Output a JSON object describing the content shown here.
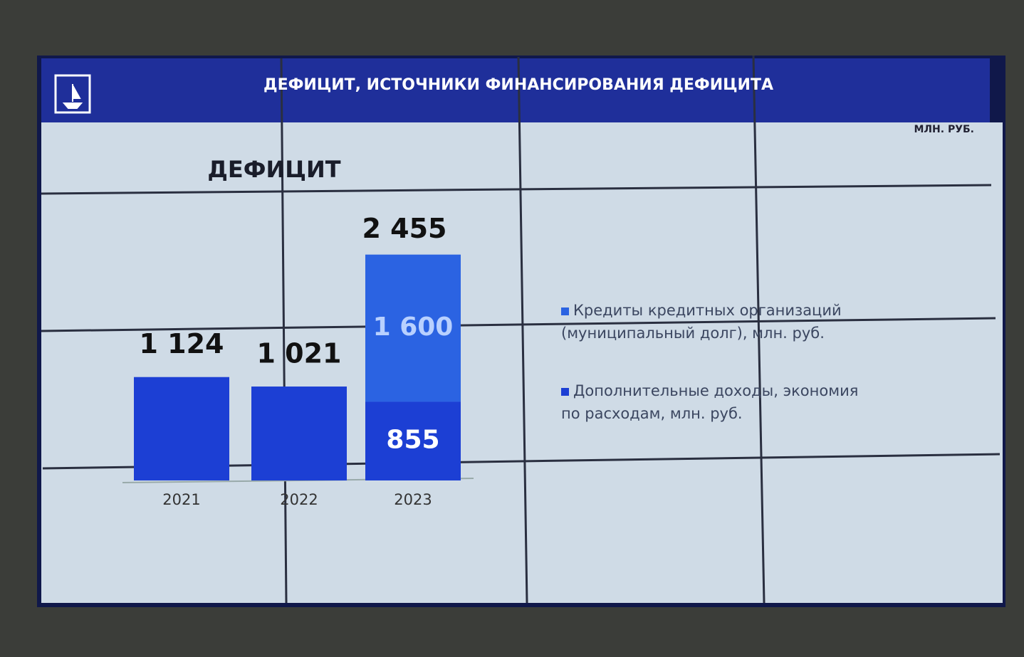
{
  "chart_data": {
    "type": "stacked_bar",
    "title": "ДЕФИЦИТ, ИСТОЧНИКИ ФИНАНСИРОВАНИЯ ДЕФИЦИТА",
    "subtitle": "ДЕФИЦИТ",
    "units": "МЛН. РУБ.",
    "categories": [
      "2021",
      "2022",
      "2023"
    ],
    "series": [
      {
        "name": "Дополнительные доходы, экономия по расходам, млн. руб.",
        "color": "#1c3fd4",
        "values": [
          1124,
          1021,
          855
        ],
        "value_labels": [
          "1 124",
          "1 021",
          "855"
        ]
      },
      {
        "name": "Кредиты кредитных организаций (муниципальный долг), млн. руб.",
        "color": "#2b63e2",
        "values": [
          null,
          null,
          1600
        ],
        "value_labels": [
          null,
          null,
          "1 600"
        ]
      }
    ],
    "totals": [
      null,
      null,
      2455
    ],
    "total_labels": [
      null,
      null,
      "2 455"
    ],
    "ylim": [
      0,
      2700
    ]
  }
}
